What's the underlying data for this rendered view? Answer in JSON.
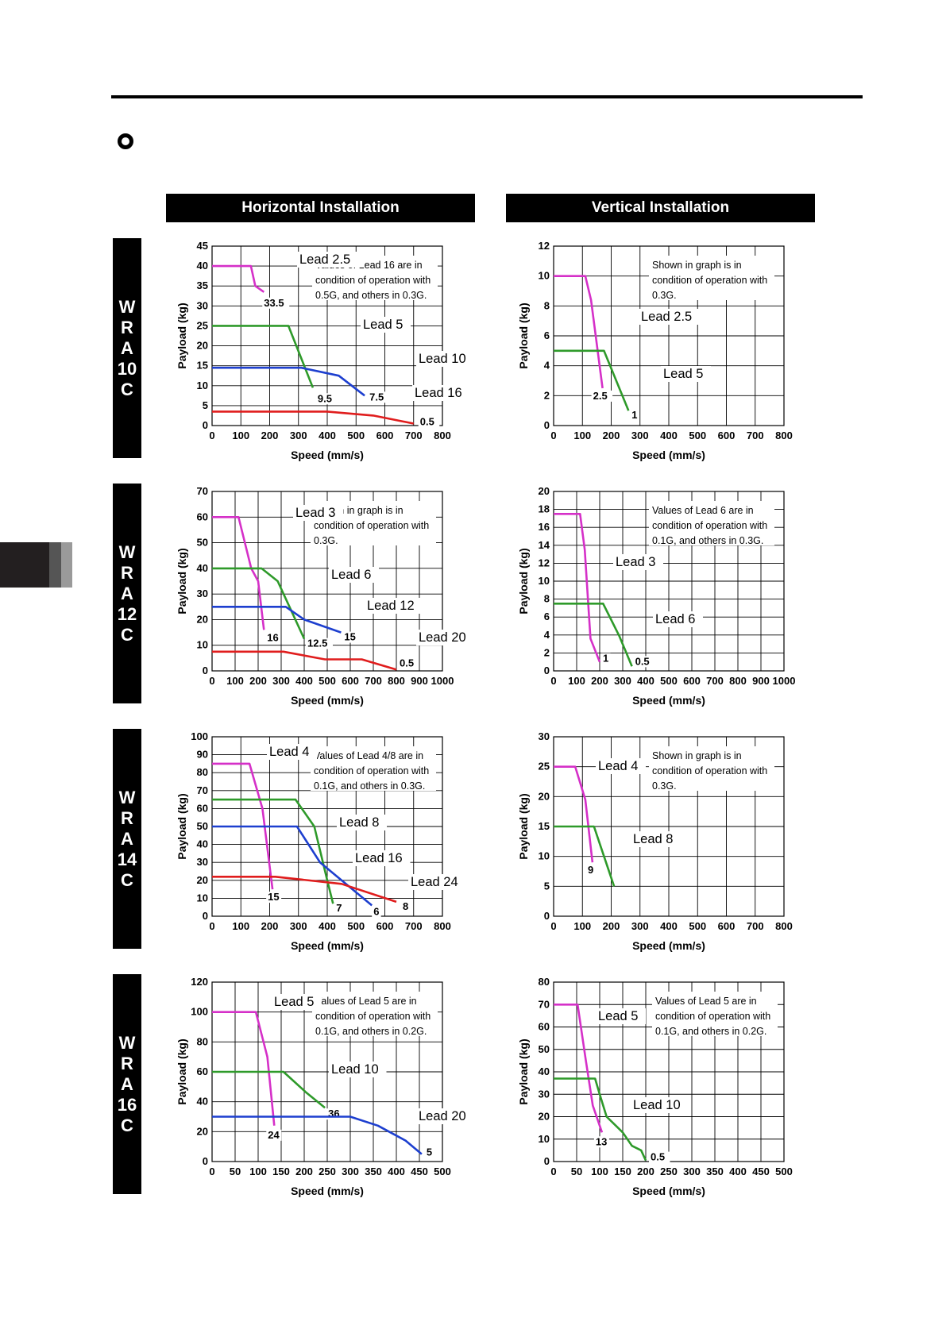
{
  "header": {
    "horizontal": "Horizontal Installation",
    "vertical": "Vertical Installation"
  },
  "rows": [
    {
      "lines": [
        "W",
        "R",
        "A",
        "10",
        "C"
      ]
    },
    {
      "lines": [
        "W",
        "R",
        "A",
        "12",
        "C"
      ]
    },
    {
      "lines": [
        "W",
        "R",
        "A",
        "14",
        "C"
      ]
    },
    {
      "lines": [
        "W",
        "R",
        "A",
        "16",
        "C"
      ]
    }
  ],
  "colors": {
    "magenta": "#d530c8",
    "green": "#2e9a2a",
    "blue": "#1d3fcf",
    "red": "#e01d1d"
  },
  "chart_data": [
    {
      "type": "line",
      "xlabel": "Speed (mm/s)",
      "ylabel": "Payload (kg)",
      "xlim": [
        0,
        800
      ],
      "ylim": [
        0,
        45
      ],
      "xticks": [
        0,
        100,
        200,
        300,
        400,
        500,
        600,
        700,
        800
      ],
      "yticks": [
        0,
        5,
        10,
        15,
        20,
        25,
        30,
        35,
        40,
        45
      ],
      "note": [
        "Values of Lead 16 are in",
        "condition of operation with",
        "0.5G, and others in 0.3G."
      ],
      "series": [
        {
          "name": "Lead 2.5",
          "color": "#d530c8",
          "x": [
            0,
            135,
            150,
            180
          ],
          "y": [
            40,
            40,
            35,
            33.5
          ],
          "end": "33.5"
        },
        {
          "name": "Lead 5",
          "color": "#2e9a2a",
          "x": [
            0,
            265,
            350
          ],
          "y": [
            25,
            25,
            9.5
          ],
          "end": "9.5"
        },
        {
          "name": "Lead 10",
          "color": "#1d3fcf",
          "x": [
            0,
            310,
            440,
            530
          ],
          "y": [
            14.5,
            14.5,
            12.5,
            7.5
          ],
          "end": "7.5"
        },
        {
          "name": "Lead 16",
          "color": "#e01d1d",
          "x": [
            0,
            400,
            560,
            700
          ],
          "y": [
            3.5,
            3.5,
            2.5,
            0.5
          ],
          "end": "0.5"
        }
      ]
    },
    {
      "type": "line",
      "xlabel": "Speed (mm/s)",
      "ylabel": "Payload (kg)",
      "xlim": [
        0,
        800
      ],
      "ylim": [
        0,
        12
      ],
      "xticks": [
        0,
        100,
        200,
        300,
        400,
        500,
        600,
        700,
        800
      ],
      "yticks": [
        0,
        2,
        4,
        6,
        8,
        10,
        12
      ],
      "note": [
        "Shown in graph is in",
        "condition of operation with",
        "0.3G."
      ],
      "series": [
        {
          "name": "Lead 2.5",
          "color": "#d530c8",
          "x": [
            0,
            110,
            130,
            170
          ],
          "y": [
            10,
            10,
            8.4,
            2.5
          ],
          "end": "2.5"
        },
        {
          "name": "Lead 5",
          "color": "#2e9a2a",
          "x": [
            0,
            175,
            260
          ],
          "y": [
            5,
            5,
            1
          ],
          "end": "1"
        }
      ]
    },
    {
      "type": "line",
      "xlabel": "Speed (mm/s)",
      "ylabel": "Payload (kg)",
      "xlim": [
        0,
        1000
      ],
      "ylim": [
        0,
        70
      ],
      "xticks": [
        0,
        100,
        200,
        300,
        400,
        500,
        600,
        700,
        800,
        900,
        1000
      ],
      "yticks": [
        0,
        10,
        20,
        30,
        40,
        50,
        60,
        70
      ],
      "note": [
        "Shown in graph is in",
        "condition of operation with",
        "0.3G."
      ],
      "series": [
        {
          "name": "Lead 3",
          "color": "#d530c8",
          "x": [
            0,
            115,
            170,
            200,
            225
          ],
          "y": [
            60,
            60,
            40,
            35,
            16
          ],
          "end": "16"
        },
        {
          "name": "Lead 6",
          "color": "#2e9a2a",
          "x": [
            0,
            215,
            285,
            400
          ],
          "y": [
            40,
            40,
            35,
            12.5
          ],
          "end": "12.5"
        },
        {
          "name": "Lead 12",
          "color": "#1d3fcf",
          "x": [
            0,
            320,
            400,
            560
          ],
          "y": [
            25,
            25,
            20,
            15
          ],
          "end": "15"
        },
        {
          "name": "Lead 20",
          "color": "#e01d1d",
          "x": [
            0,
            310,
            490,
            650,
            800
          ],
          "y": [
            7.5,
            7.5,
            4.5,
            4.5,
            0.5
          ],
          "end": "0.5"
        }
      ]
    },
    {
      "type": "line",
      "xlabel": "Speed (mm/s)",
      "ylabel": "Payload (kg)",
      "xlim": [
        0,
        1000
      ],
      "ylim": [
        0,
        20
      ],
      "xticks": [
        0,
        100,
        200,
        300,
        400,
        500,
        600,
        700,
        800,
        900,
        1000
      ],
      "yticks": [
        0,
        2,
        4,
        6,
        8,
        10,
        12,
        14,
        16,
        18,
        20
      ],
      "note": [
        "Values of Lead 6 are in",
        "condition of operation with",
        "0.1G, and others in 0.3G."
      ],
      "series": [
        {
          "name": "Lead 3",
          "color": "#d530c8",
          "x": [
            0,
            115,
            135,
            160,
            200
          ],
          "y": [
            17.5,
            17.5,
            13.5,
            3.6,
            1
          ],
          "end": "1"
        },
        {
          "name": "Lead 6",
          "color": "#2e9a2a",
          "x": [
            0,
            215,
            285,
            340
          ],
          "y": [
            7.5,
            7.5,
            3.9,
            0.5
          ],
          "end": "0.5"
        }
      ]
    },
    {
      "type": "line",
      "xlabel": "Speed (mm/s)",
      "ylabel": "Payload (kg)",
      "xlim": [
        0,
        800
      ],
      "ylim": [
        0,
        100
      ],
      "xticks": [
        0,
        100,
        200,
        300,
        400,
        500,
        600,
        700,
        800
      ],
      "yticks": [
        0,
        10,
        20,
        30,
        40,
        50,
        60,
        70,
        80,
        90,
        100
      ],
      "note": [
        "Values of Lead 4/8 are in",
        "condition of operation with",
        "0.1G, and others in 0.3G."
      ],
      "series": [
        {
          "name": "Lead 4",
          "color": "#d530c8",
          "x": [
            0,
            130,
            175,
            210
          ],
          "y": [
            85,
            85,
            60,
            15
          ],
          "end": "15"
        },
        {
          "name": "Lead 8",
          "color": "#2e9a2a",
          "x": [
            0,
            290,
            355,
            400,
            420
          ],
          "y": [
            65,
            65,
            50,
            20,
            7
          ],
          "end": "7"
        },
        {
          "name": "Lead 16",
          "color": "#1d3fcf",
          "x": [
            0,
            295,
            375,
            555
          ],
          "y": [
            50,
            50,
            30,
            6
          ],
          "end": "6"
        },
        {
          "name": "Lead 24",
          "color": "#e01d1d",
          "x": [
            0,
            220,
            450,
            640
          ],
          "y": [
            22,
            22,
            18,
            8
          ],
          "end": "8"
        }
      ]
    },
    {
      "type": "line",
      "xlabel": "Speed (mm/s)",
      "ylabel": "Payload (kg)",
      "xlim": [
        0,
        800
      ],
      "ylim": [
        0,
        30
      ],
      "xticks": [
        0,
        100,
        200,
        300,
        400,
        500,
        600,
        700,
        800
      ],
      "yticks": [
        0,
        5,
        10,
        15,
        20,
        25,
        30
      ],
      "note": [
        "Shown in graph is in",
        "condition of operation with",
        "0.3G."
      ],
      "series": [
        {
          "name": "Lead 4",
          "color": "#d530c8",
          "x": [
            0,
            75,
            110,
            135
          ],
          "y": [
            25,
            25,
            19.5,
            9
          ],
          "end": "9"
        },
        {
          "name": "Lead 8",
          "color": "#2e9a2a",
          "x": [
            0,
            140,
            210
          ],
          "y": [
            15,
            15,
            5
          ],
          "end": ""
        }
      ]
    },
    {
      "type": "line",
      "xlabel": "Speed (mm/s)",
      "ylabel": "Payload (kg)",
      "xlim": [
        0,
        500
      ],
      "ylim": [
        0,
        120
      ],
      "xticks": [
        0,
        50,
        100,
        150,
        200,
        250,
        300,
        350,
        400,
        450,
        500
      ],
      "yticks": [
        0,
        20,
        40,
        60,
        80,
        100,
        120
      ],
      "note": [
        "Values of Lead 5 are in",
        "condition of operation with",
        "0.1G, and others in 0.2G."
      ],
      "series": [
        {
          "name": "Lead 5",
          "color": "#d530c8",
          "x": [
            0,
            95,
            120,
            135
          ],
          "y": [
            100,
            100,
            70,
            24
          ],
          "end": "24"
        },
        {
          "name": "Lead 10",
          "color": "#2e9a2a",
          "x": [
            0,
            155,
            205,
            245
          ],
          "y": [
            60,
            60,
            46,
            36
          ],
          "end": "36"
        },
        {
          "name": "Lead 20",
          "color": "#1d3fcf",
          "x": [
            0,
            300,
            360,
            420,
            455
          ],
          "y": [
            30,
            30,
            24,
            14,
            5
          ],
          "end": "5"
        }
      ]
    },
    {
      "type": "line",
      "xlabel": "Speed (mm/s)",
      "ylabel": "Payload (kg)",
      "xlim": [
        0,
        500
      ],
      "ylim": [
        0,
        80
      ],
      "xticks": [
        0,
        50,
        100,
        150,
        200,
        250,
        300,
        350,
        400,
        450,
        500
      ],
      "yticks": [
        0,
        10,
        20,
        30,
        40,
        50,
        60,
        70,
        80
      ],
      "note": [
        "Values of Lead 5 are in",
        "condition of operation with",
        "0.1G, and others in 0.2G."
      ],
      "series": [
        {
          "name": "Lead 5",
          "color": "#d530c8",
          "x": [
            0,
            52,
            70,
            85,
            105
          ],
          "y": [
            70,
            70,
            45,
            25,
            13
          ],
          "end": "13"
        },
        {
          "name": "Lead 10",
          "color": "#2e9a2a",
          "x": [
            0,
            90,
            100,
            115,
            135,
            150,
            170,
            190,
            200
          ],
          "y": [
            37,
            37,
            30,
            20,
            16,
            13,
            7,
            5,
            0.5
          ],
          "end": "0.5"
        }
      ]
    }
  ]
}
